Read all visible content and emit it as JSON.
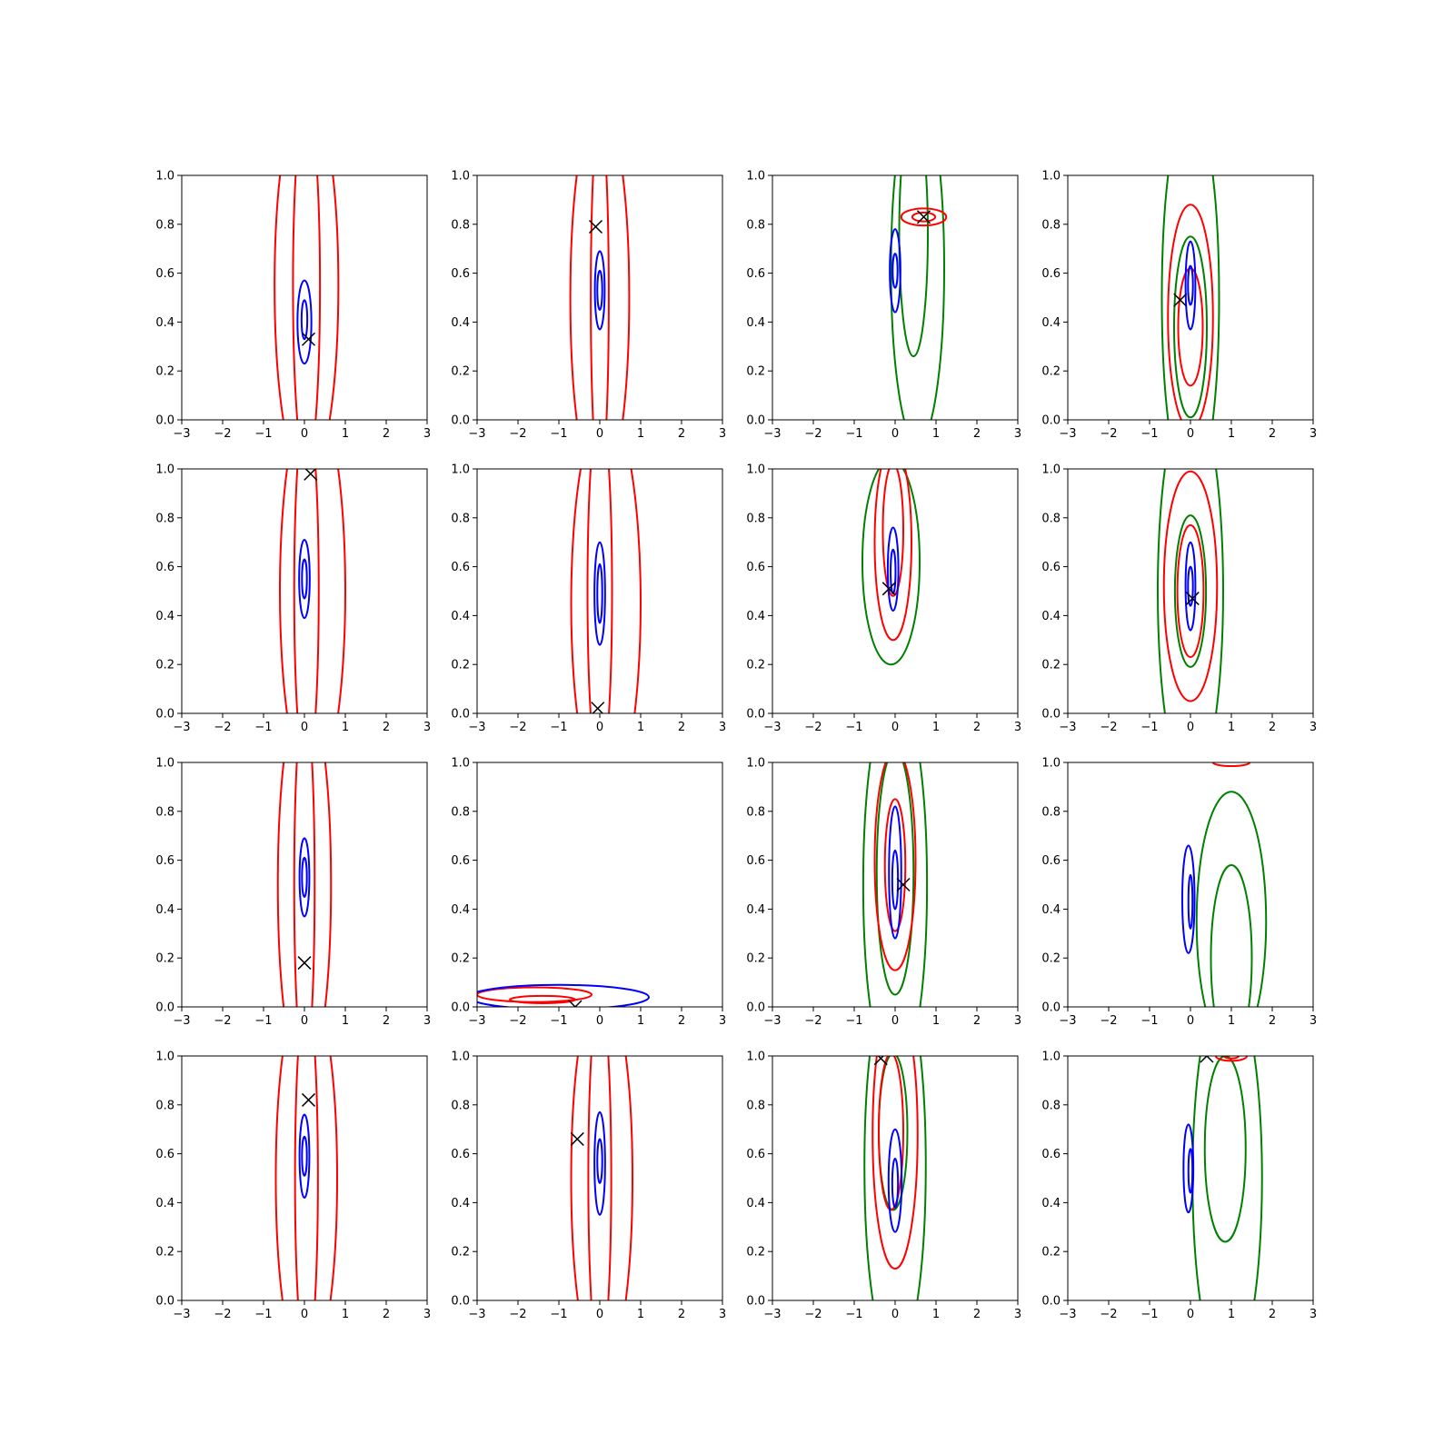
{
  "figure": {
    "rows": 4,
    "cols": 4,
    "colors": {
      "blue": "#0000ff",
      "red": "#ff0000",
      "green": "#008000",
      "marker": "#000000"
    }
  },
  "chart_data": [
    {
      "type": "contour",
      "panel": "r1c1",
      "xlim": [
        -3,
        3
      ],
      "ylim": [
        0,
        1
      ],
      "x_ticks": [
        "−3",
        "−2",
        "−1",
        "0",
        "1",
        "2",
        "3"
      ],
      "y_ticks": [
        "0.0",
        "0.2",
        "0.4",
        "0.6",
        "0.8",
        "1.0"
      ],
      "blue": [
        {
          "cx": 0.0,
          "cy": 0.4,
          "rx": 0.17,
          "ry": 0.17
        },
        {
          "cx": 0.0,
          "cy": 0.41,
          "rx": 0.07,
          "ry": 0.08
        }
      ],
      "red": [
        {
          "cx": 0.05,
          "cy": 0.55,
          "rx": 0.78,
          "ry": 0.8
        },
        {
          "cx": 0.05,
          "cy": 0.55,
          "rx": 0.33,
          "ry": 0.75
        }
      ],
      "green": [],
      "marker": {
        "x": 0.1,
        "y": 0.33
      }
    },
    {
      "type": "contour",
      "panel": "r1c2",
      "xlim": [
        -3,
        3
      ],
      "ylim": [
        0,
        1
      ],
      "x_ticks": [
        "−3",
        "−2",
        "−1",
        "0",
        "1",
        "2",
        "3"
      ],
      "y_ticks": [
        "0.0",
        "0.2",
        "0.4",
        "0.6",
        "0.8",
        "1.0"
      ],
      "blue": [
        {
          "cx": 0.0,
          "cy": 0.53,
          "rx": 0.12,
          "ry": 0.16
        },
        {
          "cx": 0.0,
          "cy": 0.53,
          "rx": 0.06,
          "ry": 0.08
        }
      ],
      "red": [
        {
          "cx": 0.0,
          "cy": 0.5,
          "rx": 0.72,
          "ry": 0.8
        },
        {
          "cx": 0.0,
          "cy": 0.5,
          "rx": 0.22,
          "ry": 0.75
        }
      ],
      "green": [],
      "marker": {
        "x": -0.1,
        "y": 0.79
      }
    },
    {
      "type": "contour",
      "panel": "r1c3",
      "xlim": [
        -3,
        3
      ],
      "ylim": [
        0,
        1
      ],
      "x_ticks": [
        "−3",
        "−2",
        "−1",
        "0",
        "1",
        "2",
        "3"
      ],
      "y_ticks": [
        "0.0",
        "0.2",
        "0.4",
        "0.6",
        "0.8",
        "1.0"
      ],
      "blue": [
        {
          "cx": 0.0,
          "cy": 0.61,
          "rx": 0.13,
          "ry": 0.17
        },
        {
          "cx": 0.0,
          "cy": 0.61,
          "rx": 0.06,
          "ry": 0.07
        }
      ],
      "red": [
        {
          "cx": 0.7,
          "cy": 0.83,
          "rx": 0.55,
          "ry": 0.035
        },
        {
          "cx": 0.7,
          "cy": 0.83,
          "rx": 0.28,
          "ry": 0.018
        }
      ],
      "green": [
        {
          "cx": 0.55,
          "cy": 0.62,
          "rx": 0.65,
          "ry": 0.72
        },
        {
          "cx": 0.45,
          "cy": 0.76,
          "rx": 0.35,
          "ry": 0.5
        }
      ],
      "marker": {
        "x": 0.7,
        "y": 0.83
      }
    },
    {
      "type": "contour",
      "panel": "r1c4",
      "xlim": [
        -3,
        3
      ],
      "ylim": [
        0,
        1
      ],
      "x_ticks": [
        "−3",
        "−2",
        "−1",
        "0",
        "1",
        "2",
        "3"
      ],
      "y_ticks": [
        "0.0",
        "0.2",
        "0.4",
        "0.6",
        "0.8",
        "1.0"
      ],
      "blue": [
        {
          "cx": 0.0,
          "cy": 0.55,
          "rx": 0.12,
          "ry": 0.18
        },
        {
          "cx": 0.0,
          "cy": 0.55,
          "rx": 0.06,
          "ry": 0.08
        }
      ],
      "red": [
        {
          "cx": 0.0,
          "cy": 0.42,
          "rx": 0.55,
          "ry": 0.46
        },
        {
          "cx": 0.0,
          "cy": 0.38,
          "rx": 0.3,
          "ry": 0.24
        }
      ],
      "green": [
        {
          "cx": 0.0,
          "cy": 0.5,
          "rx": 0.7,
          "ry": 0.8
        },
        {
          "cx": 0.0,
          "cy": 0.38,
          "rx": 0.4,
          "ry": 0.37
        }
      ],
      "marker": {
        "x": -0.25,
        "y": 0.49
      }
    },
    {
      "type": "contour",
      "panel": "r2c1",
      "xlim": [
        -3,
        3
      ],
      "ylim": [
        0,
        1
      ],
      "x_ticks": [
        "−3",
        "−2",
        "−1",
        "0",
        "1",
        "2",
        "3"
      ],
      "y_ticks": [
        "0.0",
        "0.2",
        "0.4",
        "0.6",
        "0.8",
        "1.0"
      ],
      "blue": [
        {
          "cx": 0.0,
          "cy": 0.55,
          "rx": 0.13,
          "ry": 0.16
        },
        {
          "cx": 0.0,
          "cy": 0.55,
          "rx": 0.06,
          "ry": 0.08
        }
      ],
      "red": [
        {
          "cx": 0.2,
          "cy": 0.5,
          "rx": 0.8,
          "ry": 0.8
        },
        {
          "cx": 0.05,
          "cy": 0.5,
          "rx": 0.3,
          "ry": 0.75
        }
      ],
      "green": [],
      "marker": {
        "x": 0.15,
        "y": 0.98
      }
    },
    {
      "type": "contour",
      "panel": "r2c2",
      "xlim": [
        -3,
        3
      ],
      "ylim": [
        0,
        1
      ],
      "x_ticks": [
        "−3",
        "−2",
        "−1",
        "0",
        "1",
        "2",
        "3"
      ],
      "y_ticks": [
        "0.0",
        "0.2",
        "0.4",
        "0.6",
        "0.8",
        "1.0"
      ],
      "blue": [
        {
          "cx": 0.0,
          "cy": 0.49,
          "rx": 0.13,
          "ry": 0.21
        },
        {
          "cx": 0.0,
          "cy": 0.49,
          "rx": 0.06,
          "ry": 0.12
        }
      ],
      "red": [
        {
          "cx": 0.15,
          "cy": 0.45,
          "rx": 0.85,
          "ry": 0.8
        },
        {
          "cx": 0.0,
          "cy": 0.5,
          "rx": 0.3,
          "ry": 0.75
        }
      ],
      "green": [],
      "marker": {
        "x": -0.05,
        "y": 0.02
      }
    },
    {
      "type": "contour",
      "panel": "r2c3",
      "xlim": [
        -3,
        3
      ],
      "ylim": [
        0,
        1
      ],
      "x_ticks": [
        "−3",
        "−2",
        "−1",
        "0",
        "1",
        "2",
        "3"
      ],
      "y_ticks": [
        "0.0",
        "0.2",
        "0.4",
        "0.6",
        "0.8",
        "1.0"
      ],
      "blue": [
        {
          "cx": -0.05,
          "cy": 0.59,
          "rx": 0.13,
          "ry": 0.17
        },
        {
          "cx": -0.05,
          "cy": 0.58,
          "rx": 0.06,
          "ry": 0.09
        }
      ],
      "red": [
        {
          "cx": -0.05,
          "cy": 0.7,
          "rx": 0.45,
          "ry": 0.4
        },
        {
          "cx": -0.05,
          "cy": 0.75,
          "rx": 0.25,
          "ry": 0.27
        }
      ],
      "green": [
        {
          "cx": -0.1,
          "cy": 0.62,
          "rx": 0.7,
          "ry": 0.42
        }
      ],
      "marker": {
        "x": -0.15,
        "y": 0.51
      }
    },
    {
      "type": "contour",
      "panel": "r2c4",
      "xlim": [
        -3,
        3
      ],
      "ylim": [
        0,
        1
      ],
      "x_ticks": [
        "−3",
        "−2",
        "−1",
        "0",
        "1",
        "2",
        "3"
      ],
      "y_ticks": [
        "0.0",
        "0.2",
        "0.4",
        "0.6",
        "0.8",
        "1.0"
      ],
      "blue": [
        {
          "cx": 0.0,
          "cy": 0.52,
          "rx": 0.12,
          "ry": 0.18
        },
        {
          "cx": 0.0,
          "cy": 0.52,
          "rx": 0.06,
          "ry": 0.08
        }
      ],
      "red": [
        {
          "cx": 0.0,
          "cy": 0.52,
          "rx": 0.65,
          "ry": 0.47
        },
        {
          "cx": 0.0,
          "cy": 0.5,
          "rx": 0.32,
          "ry": 0.27
        }
      ],
      "green": [
        {
          "cx": 0.0,
          "cy": 0.5,
          "rx": 0.8,
          "ry": 0.8
        },
        {
          "cx": 0.0,
          "cy": 0.5,
          "rx": 0.38,
          "ry": 0.31
        }
      ],
      "marker": {
        "x": 0.05,
        "y": 0.47
      }
    },
    {
      "type": "contour",
      "panel": "r3c1",
      "xlim": [
        -3,
        3
      ],
      "ylim": [
        0,
        1
      ],
      "x_ticks": [
        "−3",
        "−2",
        "−1",
        "0",
        "1",
        "2",
        "3"
      ],
      "y_ticks": [
        "0.0",
        "0.2",
        "0.4",
        "0.6",
        "0.8",
        "1.0"
      ],
      "blue": [
        {
          "cx": 0.0,
          "cy": 0.53,
          "rx": 0.12,
          "ry": 0.16
        },
        {
          "cx": 0.0,
          "cy": 0.53,
          "rx": 0.06,
          "ry": 0.08
        }
      ],
      "red": [
        {
          "cx": 0.0,
          "cy": 0.5,
          "rx": 0.65,
          "ry": 0.8
        },
        {
          "cx": 0.0,
          "cy": 0.5,
          "rx": 0.25,
          "ry": 0.75
        }
      ],
      "green": [],
      "marker": {
        "x": 0.0,
        "y": 0.18
      }
    },
    {
      "type": "contour",
      "panel": "r3c2",
      "xlim": [
        -3,
        3
      ],
      "ylim": [
        0,
        1
      ],
      "x_ticks": [
        "−3",
        "−2",
        "−1",
        "0",
        "1",
        "2",
        "3"
      ],
      "y_ticks": [
        "0.0",
        "0.2",
        "0.4",
        "0.6",
        "0.8",
        "1.0"
      ],
      "blue": [
        {
          "cx": -1.0,
          "cy": 0.04,
          "rx": 2.2,
          "ry": 0.05
        }
      ],
      "red": [
        {
          "cx": -1.6,
          "cy": 0.05,
          "rx": 1.4,
          "ry": 0.03
        },
        {
          "cx": -1.4,
          "cy": 0.03,
          "rx": 0.8,
          "ry": 0.015
        }
      ],
      "green": [],
      "marker": {
        "x": -0.6,
        "y": 0.0
      }
    },
    {
      "type": "contour",
      "panel": "r3c3",
      "xlim": [
        -3,
        3
      ],
      "ylim": [
        0,
        1
      ],
      "x_ticks": [
        "−3",
        "−2",
        "−1",
        "0",
        "1",
        "2",
        "3"
      ],
      "y_ticks": [
        "0.0",
        "0.2",
        "0.4",
        "0.6",
        "0.8",
        "1.0"
      ],
      "blue": [
        {
          "cx": 0.0,
          "cy": 0.55,
          "rx": 0.15,
          "ry": 0.27
        },
        {
          "cx": 0.0,
          "cy": 0.52,
          "rx": 0.07,
          "ry": 0.12
        }
      ],
      "red": [
        {
          "cx": 0.0,
          "cy": 0.6,
          "rx": 0.5,
          "ry": 0.45
        },
        {
          "cx": 0.0,
          "cy": 0.58,
          "rx": 0.25,
          "ry": 0.27
        }
      ],
      "green": [
        {
          "cx": 0.0,
          "cy": 0.5,
          "rx": 0.78,
          "ry": 0.8
        },
        {
          "cx": 0.0,
          "cy": 0.55,
          "rx": 0.45,
          "ry": 0.5
        }
      ],
      "marker": {
        "x": 0.2,
        "y": 0.5
      }
    },
    {
      "type": "contour",
      "panel": "r3c4",
      "xlim": [
        -3,
        3
      ],
      "ylim": [
        0,
        1
      ],
      "x_ticks": [
        "−3",
        "−2",
        "−1",
        "0",
        "1",
        "2",
        "3"
      ],
      "y_ticks": [
        "0.0",
        "0.2",
        "0.4",
        "0.6",
        "0.8",
        "1.0"
      ],
      "blue": [
        {
          "cx": -0.05,
          "cy": 0.44,
          "rx": 0.15,
          "ry": 0.22
        },
        {
          "cx": 0.0,
          "cy": 0.43,
          "rx": 0.05,
          "ry": 0.11
        }
      ],
      "red": [
        {
          "cx": 1.0,
          "cy": 1.0,
          "rx": 0.45,
          "ry": 0.015
        }
      ],
      "green": [
        {
          "cx": 1.0,
          "cy": 0.35,
          "rx": 0.85,
          "ry": 0.53
        },
        {
          "cx": 1.0,
          "cy": 0.2,
          "rx": 0.5,
          "ry": 0.38
        }
      ],
      "marker": null
    },
    {
      "type": "contour",
      "panel": "r4c1",
      "xlim": [
        -3,
        3
      ],
      "ylim": [
        0,
        1
      ],
      "x_ticks": [
        "−3",
        "−2",
        "−1",
        "0",
        "1",
        "2",
        "3"
      ],
      "y_ticks": [
        "0.0",
        "0.2",
        "0.4",
        "0.6",
        "0.8",
        "1.0"
      ],
      "blue": [
        {
          "cx": 0.0,
          "cy": 0.59,
          "rx": 0.12,
          "ry": 0.17
        },
        {
          "cx": 0.0,
          "cy": 0.59,
          "rx": 0.06,
          "ry": 0.08
        }
      ],
      "red": [
        {
          "cx": 0.05,
          "cy": 0.5,
          "rx": 0.75,
          "ry": 0.8
        },
        {
          "cx": 0.05,
          "cy": 0.5,
          "rx": 0.28,
          "ry": 0.75
        }
      ],
      "green": [],
      "marker": {
        "x": 0.1,
        "y": 0.82
      }
    },
    {
      "type": "contour",
      "panel": "r4c2",
      "xlim": [
        -3,
        3
      ],
      "ylim": [
        0,
        1
      ],
      "x_ticks": [
        "−3",
        "−2",
        "−1",
        "0",
        "1",
        "2",
        "3"
      ],
      "y_ticks": [
        "0.0",
        "0.2",
        "0.4",
        "0.6",
        "0.8",
        "1.0"
      ],
      "blue": [
        {
          "cx": 0.0,
          "cy": 0.56,
          "rx": 0.13,
          "ry": 0.21
        },
        {
          "cx": 0.0,
          "cy": 0.57,
          "rx": 0.06,
          "ry": 0.09
        }
      ],
      "red": [
        {
          "cx": 0.05,
          "cy": 0.5,
          "rx": 0.75,
          "ry": 0.8
        },
        {
          "cx": 0.0,
          "cy": 0.5,
          "rx": 0.28,
          "ry": 0.75
        }
      ],
      "green": [],
      "marker": {
        "x": -0.55,
        "y": 0.66
      }
    },
    {
      "type": "contour",
      "panel": "r4c3",
      "xlim": [
        -3,
        3
      ],
      "ylim": [
        0,
        1
      ],
      "x_ticks": [
        "−3",
        "−2",
        "−1",
        "0",
        "1",
        "2",
        "3"
      ],
      "y_ticks": [
        "0.0",
        "0.2",
        "0.4",
        "0.6",
        "0.8",
        "1.0"
      ],
      "blue": [
        {
          "cx": 0.0,
          "cy": 0.49,
          "rx": 0.16,
          "ry": 0.21
        },
        {
          "cx": 0.0,
          "cy": 0.48,
          "rx": 0.07,
          "ry": 0.1
        }
      ],
      "red": [
        {
          "cx": 0.0,
          "cy": 0.68,
          "rx": 0.55,
          "ry": 0.55
        },
        {
          "cx": -0.1,
          "cy": 0.69,
          "rx": 0.3,
          "ry": 0.32
        }
      ],
      "green": [
        {
          "cx": 0.0,
          "cy": 0.55,
          "rx": 0.75,
          "ry": 0.8
        },
        {
          "cx": -0.05,
          "cy": 0.69,
          "rx": 0.35,
          "ry": 0.32
        }
      ],
      "marker": {
        "x": -0.35,
        "y": 0.99
      }
    },
    {
      "type": "contour",
      "panel": "r4c4",
      "xlim": [
        -3,
        3
      ],
      "ylim": [
        0,
        1
      ],
      "x_ticks": [
        "−3",
        "−2",
        "−1",
        "0",
        "1",
        "2",
        "3"
      ],
      "y_ticks": [
        "0.0",
        "0.2",
        "0.4",
        "0.6",
        "0.8",
        "1.0"
      ],
      "blue": [
        {
          "cx": -0.05,
          "cy": 0.54,
          "rx": 0.12,
          "ry": 0.18
        },
        {
          "cx": 0.0,
          "cy": 0.53,
          "rx": 0.05,
          "ry": 0.09
        }
      ],
      "red": [
        {
          "cx": 1.0,
          "cy": 1.0,
          "rx": 0.38,
          "ry": 0.02
        },
        {
          "cx": 1.0,
          "cy": 1.0,
          "rx": 0.18,
          "ry": 0.01
        }
      ],
      "green": [
        {
          "cx": 0.9,
          "cy": 0.5,
          "rx": 0.85,
          "ry": 0.8
        },
        {
          "cx": 0.85,
          "cy": 0.62,
          "rx": 0.5,
          "ry": 0.38
        }
      ],
      "marker": {
        "x": 0.4,
        "y": 1.0
      }
    }
  ]
}
